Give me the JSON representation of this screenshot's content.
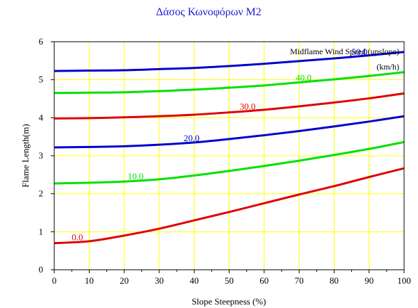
{
  "chart_data": {
    "type": "line",
    "title": "Δάσος Κωνοφόρων Μ2",
    "xlabel": "Slope Steepness (%)",
    "ylabel": "Flame Length(m)",
    "xlim": [
      0,
      100
    ],
    "ylim": [
      0,
      6
    ],
    "xticks": [
      "0",
      "10",
      "20",
      "30",
      "40",
      "50",
      "60",
      "70",
      "80",
      "90",
      "100"
    ],
    "yticks": [
      "0",
      "1",
      "2",
      "3",
      "4",
      "5",
      "6"
    ],
    "grid": true,
    "legend_title_line1": "Midflame Wind Speed (upslope)",
    "legend_title_line2": "(km/h)",
    "colors": {
      "grid": "#ffff00",
      "red": "#e00000",
      "green": "#00e000",
      "blue": "#0000d0"
    },
    "x": [
      0,
      10,
      20,
      30,
      40,
      50,
      60,
      70,
      80,
      90,
      100
    ],
    "series": [
      {
        "name": "0.0",
        "color": "#e00000",
        "values": [
          0.7,
          0.75,
          0.9,
          1.08,
          1.3,
          1.52,
          1.75,
          1.98,
          2.2,
          2.44,
          2.67
        ]
      },
      {
        "name": "10.0",
        "color": "#00e000",
        "values": [
          2.27,
          2.29,
          2.32,
          2.38,
          2.48,
          2.6,
          2.73,
          2.87,
          3.02,
          3.18,
          3.36
        ]
      },
      {
        "name": "20.0",
        "color": "#0000d0",
        "values": [
          3.22,
          3.23,
          3.25,
          3.29,
          3.35,
          3.44,
          3.54,
          3.65,
          3.77,
          3.9,
          4.04
        ]
      },
      {
        "name": "30.0",
        "color": "#e00000",
        "values": [
          3.98,
          3.99,
          4.01,
          4.04,
          4.08,
          4.14,
          4.21,
          4.3,
          4.4,
          4.51,
          4.64
        ]
      },
      {
        "name": "40.0",
        "color": "#00e000",
        "values": [
          4.65,
          4.66,
          4.67,
          4.7,
          4.74,
          4.79,
          4.85,
          4.93,
          5.01,
          5.1,
          5.2
        ]
      },
      {
        "name": "50.0",
        "color": "#0000d0",
        "values": [
          5.23,
          5.24,
          5.25,
          5.28,
          5.31,
          5.36,
          5.42,
          5.49,
          5.56,
          5.64,
          5.73
        ]
      }
    ]
  }
}
